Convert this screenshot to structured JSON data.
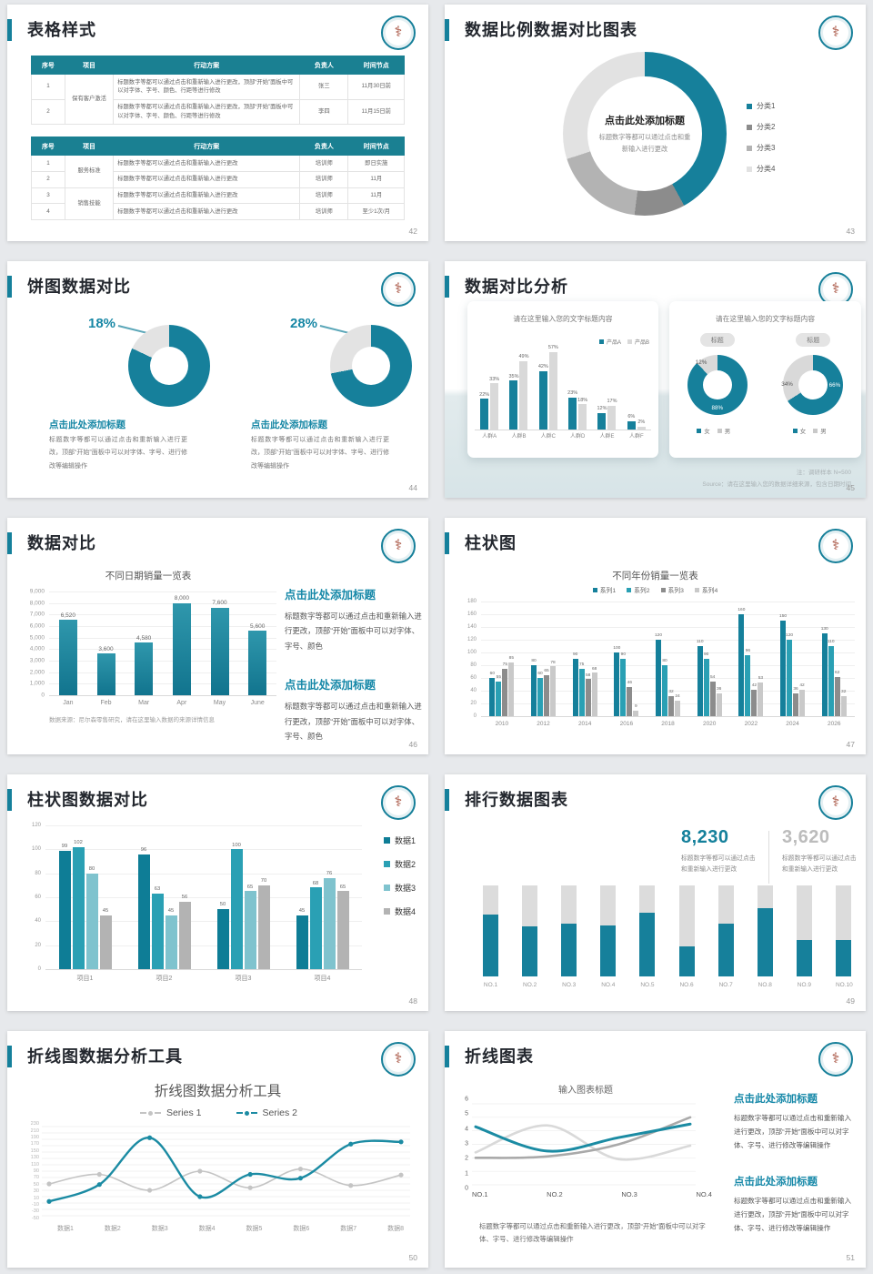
{
  "colors": {
    "teal": "#16809b",
    "tealBright": "#2aa0b4",
    "tealLight": "#7fc3ce",
    "grayDark": "#8c8c8c",
    "grayMid": "#b3b3b3",
    "grayLight": "#e2e2e2",
    "accentText": "#1787a5"
  },
  "slides": {
    "s42": {
      "title": "表格样式",
      "page": "42",
      "headers": [
        "序号",
        "项目",
        "行动方案",
        "负责人",
        "时间节点"
      ],
      "table1": {
        "project": "保有客户激活",
        "plan": "标题数字等都可以通过点击和重新输入进行更改，顶部“开始”面板中可以对字体、字号、颜色、行距等进行修改",
        "rows": [
          {
            "no": "1",
            "owner": "张三",
            "time": "11月30日前"
          },
          {
            "no": "2",
            "owner": "李四",
            "time": "11月15日前"
          }
        ]
      },
      "table2": {
        "plan": "标题数字等都可以通过点击和重新输入进行更改",
        "projects": [
          "服务标准",
          "销售技能"
        ],
        "rows": [
          {
            "no": "1",
            "owner": "培训师",
            "time": "即日实施"
          },
          {
            "no": "2",
            "owner": "培训师",
            "time": "11月"
          },
          {
            "no": "3",
            "owner": "培训师",
            "time": "11月"
          },
          {
            "no": "4",
            "owner": "培训师",
            "time": "至少1次/月"
          }
        ]
      }
    },
    "s43": {
      "title": "数据比例数据对比图表",
      "page": "43",
      "center_title": "点击此处添加标题",
      "center_text": "标题数字等都可以通过点击和重新输入进行更改",
      "chart_data": {
        "type": "pie",
        "segments": [
          {
            "label": "分类1",
            "value": 42,
            "color": "#16809b"
          },
          {
            "label": "分类2",
            "value": 10,
            "color": "#8c8c8c"
          },
          {
            "label": "分类3",
            "value": 18,
            "color": "#b3b3b3"
          },
          {
            "label": "分类4",
            "value": 30,
            "color": "#e2e2e2"
          }
        ]
      }
    },
    "s44": {
      "title": "饼图数据对比",
      "page": "44",
      "block_title": "点击此处添加标题",
      "block_text": "标题数字等都可以通过点击和重新输入进行更改，顶部“开始”面板中可以对字体、字号、进行修改等编辑操作",
      "chart_data": {
        "type": "pie",
        "donuts": [
          {
            "pct": "18%",
            "teal": 82,
            "gray": 18
          },
          {
            "pct": "28%",
            "teal": 72,
            "gray": 28
          }
        ]
      }
    },
    "s45": {
      "title": "数据对比分析",
      "page": "45",
      "note": "注：调研样本 N=500",
      "source": "Source：请在这里输入您的数据详细来源，包含日期时间",
      "left_card": {
        "title": "请在这里输入您的文字标题内容",
        "chart_data": {
          "type": "bar",
          "categories": [
            "人群A",
            "人群B",
            "人群C",
            "人群D",
            "人群E",
            "人群F"
          ],
          "ymax": 60,
          "series": [
            {
              "name": "产品A",
              "color": "#16809b",
              "values": [
                22,
                35,
                42,
                23,
                12,
                6
              ],
              "labels": [
                "22%",
                "35%",
                "42%",
                "23%",
                "12%",
                "6%"
              ]
            },
            {
              "name": "产品B",
              "color": "#d9d9d9",
              "values": [
                33,
                49,
                57,
                18,
                17,
                2
              ],
              "labels": [
                "33%",
                "49%",
                "57%",
                "18%",
                "17%",
                "2%"
              ]
            }
          ]
        }
      },
      "right_card": {
        "title": "请在这里输入您的文字标题内容",
        "pill": "标题",
        "legend": [
          "女",
          "男"
        ],
        "chart_data": {
          "type": "pie",
          "donuts": [
            {
              "teal": 88,
              "teal_label": "88%",
              "gray_label": "12%"
            },
            {
              "teal": 66,
              "teal_label": "66%",
              "gray_label": "34%"
            }
          ]
        }
      }
    },
    "s46": {
      "title": "数据对比",
      "page": "46",
      "source": "数据来源：尼尔森零售研究，请在这里输入数据的来源详情信息",
      "chart_data": {
        "type": "bar",
        "title": "不同日期销量一览表",
        "categories": [
          "Jan",
          "Feb",
          "Mar",
          "Apr",
          "May",
          "June"
        ],
        "values": [
          6520,
          3600,
          4580,
          8000,
          7600,
          5600
        ],
        "labels": [
          "6,520",
          "3,600",
          "4,580",
          "8,000",
          "7,600",
          "5,600"
        ],
        "yticks": [
          "9,000",
          "8,000",
          "7,000",
          "6,000",
          "5,000",
          "4,000",
          "3,000",
          "2,000",
          "1,000",
          "0"
        ],
        "ymax": 9000
      },
      "blocks": [
        {
          "title": "点击此处添加标题",
          "text": "标题数字等都可以通过点击和重新输入进行更改，顶部“开始”面板中可以对字体、字号、颜色"
        },
        {
          "title": "点击此处添加标题",
          "text": "标题数字等都可以通过点击和重新输入进行更改，顶部“开始”面板中可以对字体、字号、颜色"
        }
      ]
    },
    "s47": {
      "title": "柱状图",
      "page": "47",
      "chart_data": {
        "type": "bar",
        "title": "不同年份销量一览表",
        "categories": [
          "2010",
          "2012",
          "2014",
          "2016",
          "2018",
          "2020",
          "2022",
          "2024",
          "2026"
        ],
        "series": [
          {
            "name": "系列1",
            "color": "#15809b",
            "values": [
              60,
              80,
              90,
              100,
              120,
              110,
              160,
              150,
              130
            ]
          },
          {
            "name": "系列2",
            "color": "#2aa0b4",
            "values": [
              55,
              60,
              75,
              90,
              80,
              90,
              96,
              120,
              110
            ]
          },
          {
            "name": "系列3",
            "color": "#8c8c8c",
            "values": [
              75,
              65,
              58,
              46,
              32,
              54,
              42,
              36,
              62
            ]
          },
          {
            "name": "系列4",
            "color": "#c9c9c9",
            "values": [
              85,
              78,
              68,
              9,
              24,
              36,
              53,
              42,
              32
            ]
          }
        ],
        "ymax": 180,
        "yticks": [
          "180",
          "160",
          "140",
          "120",
          "100",
          "80",
          "60",
          "40",
          "20",
          "0"
        ]
      }
    },
    "s48": {
      "title": "柱状图数据对比",
      "page": "48",
      "chart_data": {
        "type": "bar",
        "categories": [
          "项目1",
          "项目2",
          "项目3",
          "项目4"
        ],
        "series": [
          {
            "name": "数据1",
            "color": "#0e7d96",
            "values": [
              99,
              96,
              50,
              45
            ]
          },
          {
            "name": "数据2",
            "color": "#2aa0b4",
            "values": [
              102,
              63,
              100,
              68
            ]
          },
          {
            "name": "数据3",
            "color": "#7fc3ce",
            "values": [
              80,
              45,
              65,
              76
            ]
          },
          {
            "name": "数据4",
            "color": "#b3b3b3",
            "values": [
              45,
              56,
              70,
              65
            ]
          }
        ],
        "ymax": 120,
        "yticks": [
          "120",
          "100",
          "80",
          "60",
          "40",
          "20",
          "0"
        ]
      }
    },
    "s49": {
      "title": "排行数据图表",
      "page": "49",
      "stats": [
        {
          "value": "8,230",
          "text": "标题数字等都可以通过点击和重新输入进行更改"
        },
        {
          "value": "3,620",
          "text": "标题数字等都可以通过点击和重新输入进行更改"
        }
      ],
      "chart_data": {
        "type": "bar",
        "categories": [
          "NO.1",
          "NO.2",
          "NO.3",
          "NO.4",
          "NO.5",
          "NO.6",
          "NO.7",
          "NO.8",
          "NO.9",
          "NO.10"
        ],
        "filled_pct": [
          68,
          55,
          58,
          56,
          70,
          33,
          58,
          75,
          40,
          40
        ]
      }
    },
    "s50": {
      "title": "折线图数据分析工具",
      "page": "50",
      "chart_data": {
        "type": "line",
        "title": "折线图数据分析工具",
        "categories": [
          "数据1",
          "数据2",
          "数据3",
          "数据4",
          "数据5",
          "数据6",
          "数据7",
          "数据8"
        ],
        "series": [
          {
            "name": "Series 1",
            "color": "#c4c4c4",
            "values": [
              50,
              80,
              30,
              90,
              38,
              97,
              45,
              78
            ]
          },
          {
            "name": "Series 2",
            "color": "#1b8ba3",
            "values": [
              -5,
              48,
              195,
              10,
              80,
              68,
              175,
              182
            ]
          }
        ],
        "ymin": -50,
        "ymax": 230,
        "yticks": [
          "230",
          "210",
          "190",
          "170",
          "150",
          "130",
          "110",
          "90",
          "70",
          "50",
          "30",
          "10",
          "-10",
          "-30",
          "-50"
        ]
      }
    },
    "s51": {
      "title": "折线图表",
      "page": "51",
      "caption": "标题数字等都可以通过点击和重新输入进行更改，顶部“开始”面板中可以对字体、字号、进行修改等编辑操作",
      "chart_data": {
        "type": "line",
        "title": "输入图表标题",
        "categories": [
          "NO.1",
          "NO.2",
          "NO.3",
          "NO.4"
        ],
        "series": [
          {
            "name": "line-teal",
            "color": "#1b8ba3",
            "values": [
              4.3,
              2.5,
              3.5,
              4.5
            ]
          },
          {
            "name": "line-light-gray",
            "color": "#d9d9d9",
            "values": [
              2.4,
              4.4,
              1.9,
              2.9
            ]
          },
          {
            "name": "line-dark-gray",
            "color": "#a9a9a9",
            "values": [
              2.0,
              2.1,
              3.0,
              5.0
            ]
          }
        ],
        "ymin": 0,
        "ymax": 6,
        "yticks": [
          "6",
          "5",
          "4",
          "3",
          "2",
          "1",
          "0"
        ]
      },
      "blocks": [
        {
          "title": "点击此处添加标题",
          "text": "标题数字等都可以通过点击和重新输入进行更改，顶部“开始”面板中可以对字体、字号、进行修改等编辑操作"
        },
        {
          "title": "点击此处添加标题",
          "text": "标题数字等都可以通过点击和重新输入进行更改，顶部“开始”面板中可以对字体、字号、进行修改等编辑操作"
        }
      ]
    }
  }
}
